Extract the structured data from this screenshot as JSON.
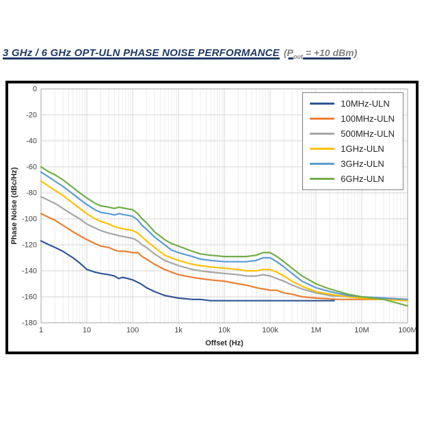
{
  "header": {
    "title_main": "3 GHz / 6 GHz OPT-ULN PHASE NOISE PERFORMANCE",
    "title_paren_pre": "(P",
    "title_sub": "out",
    "title_paren_post": " = +10 dBm)"
  },
  "chart_data": {
    "type": "line",
    "title": "3 GHz / 6 GHz OPT-ULN Phase Noise Performance (Pout = +10 dBm)",
    "xlabel": "Offset (Hz)",
    "ylabel": "Phase Noise (dBc/Hz)",
    "x_scale": "log",
    "xlim": [
      1,
      100000000
    ],
    "ylim": [
      -180,
      0
    ],
    "y_tick_step": 20,
    "x_tick_labels": [
      "1",
      "10",
      "100",
      "1k",
      "10k",
      "100k",
      "1M",
      "10M",
      "100M"
    ],
    "grid": true,
    "legend_position": "top-right",
    "series": [
      {
        "name": "10MHz-ULN",
        "color": "#2E5597",
        "points": [
          [
            1,
            -117
          ],
          [
            1.5,
            -120
          ],
          [
            2,
            -122
          ],
          [
            3,
            -125
          ],
          [
            5,
            -130
          ],
          [
            7,
            -134
          ],
          [
            10,
            -139
          ],
          [
            15,
            -141
          ],
          [
            20,
            -142
          ],
          [
            30,
            -143
          ],
          [
            40,
            -144
          ],
          [
            50,
            -146
          ],
          [
            60,
            -145
          ],
          [
            80,
            -146
          ],
          [
            100,
            -147
          ],
          [
            150,
            -150
          ],
          [
            200,
            -153
          ],
          [
            300,
            -156
          ],
          [
            500,
            -159
          ],
          [
            700,
            -160
          ],
          [
            1000,
            -161
          ],
          [
            2000,
            -162
          ],
          [
            3000,
            -162
          ],
          [
            5000,
            -163
          ],
          [
            10000,
            -163
          ],
          [
            30000,
            -163
          ],
          [
            100000,
            -163
          ],
          [
            300000,
            -163
          ],
          [
            1000000,
            -163
          ],
          [
            2500000,
            -163
          ]
        ]
      },
      {
        "name": "100MHz-ULN",
        "color": "#ED7D31",
        "points": [
          [
            1,
            -96
          ],
          [
            1.5,
            -99
          ],
          [
            2,
            -101
          ],
          [
            3,
            -105
          ],
          [
            5,
            -110
          ],
          [
            7,
            -113
          ],
          [
            10,
            -116
          ],
          [
            15,
            -119
          ],
          [
            20,
            -121
          ],
          [
            30,
            -122
          ],
          [
            40,
            -124
          ],
          [
            50,
            -125
          ],
          [
            70,
            -125
          ],
          [
            100,
            -126
          ],
          [
            130,
            -126
          ],
          [
            160,
            -129
          ],
          [
            200,
            -131
          ],
          [
            300,
            -135
          ],
          [
            500,
            -139
          ],
          [
            700,
            -141
          ],
          [
            1000,
            -143
          ],
          [
            2000,
            -145
          ],
          [
            3000,
            -146
          ],
          [
            5000,
            -147
          ],
          [
            10000,
            -148
          ],
          [
            20000,
            -150
          ],
          [
            30000,
            -151
          ],
          [
            50000,
            -153
          ],
          [
            70000,
            -154
          ],
          [
            100000,
            -155
          ],
          [
            140000,
            -155
          ],
          [
            200000,
            -157
          ],
          [
            300000,
            -158
          ],
          [
            500000,
            -160
          ],
          [
            1000000,
            -161
          ],
          [
            3000000,
            -162
          ],
          [
            10000000,
            -162
          ],
          [
            30000000,
            -162
          ],
          [
            100000000,
            -163
          ]
        ]
      },
      {
        "name": "500MHz-ULN",
        "color": "#A5A5A5",
        "points": [
          [
            1,
            -83
          ],
          [
            1.5,
            -86
          ],
          [
            2,
            -88
          ],
          [
            3,
            -92
          ],
          [
            5,
            -97
          ],
          [
            7,
            -100
          ],
          [
            10,
            -104
          ],
          [
            15,
            -107
          ],
          [
            20,
            -109
          ],
          [
            30,
            -111
          ],
          [
            40,
            -112
          ],
          [
            50,
            -113
          ],
          [
            70,
            -114
          ],
          [
            100,
            -115
          ],
          [
            130,
            -117
          ],
          [
            160,
            -120
          ],
          [
            200,
            -122
          ],
          [
            300,
            -127
          ],
          [
            500,
            -132
          ],
          [
            700,
            -134
          ],
          [
            1000,
            -136
          ],
          [
            2000,
            -139
          ],
          [
            3000,
            -140
          ],
          [
            5000,
            -141
          ],
          [
            10000,
            -142
          ],
          [
            20000,
            -143
          ],
          [
            30000,
            -144
          ],
          [
            50000,
            -144
          ],
          [
            70000,
            -143
          ],
          [
            100000,
            -144
          ],
          [
            140000,
            -146
          ],
          [
            200000,
            -148
          ],
          [
            300000,
            -151
          ],
          [
            500000,
            -154
          ],
          [
            1000000,
            -157
          ],
          [
            2000000,
            -159
          ],
          [
            5000000,
            -160
          ],
          [
            10000000,
            -161
          ],
          [
            30000000,
            -161
          ],
          [
            100000000,
            -162
          ]
        ]
      },
      {
        "name": "1GHz-ULN",
        "color": "#FFC000",
        "points": [
          [
            1,
            -71
          ],
          [
            1.5,
            -75
          ],
          [
            2,
            -78
          ],
          [
            3,
            -82
          ],
          [
            5,
            -88
          ],
          [
            7,
            -92
          ],
          [
            10,
            -96
          ],
          [
            15,
            -100
          ],
          [
            20,
            -102
          ],
          [
            30,
            -104
          ],
          [
            40,
            -106
          ],
          [
            50,
            -107
          ],
          [
            70,
            -108
          ],
          [
            100,
            -109
          ],
          [
            130,
            -111
          ],
          [
            160,
            -114
          ],
          [
            200,
            -117
          ],
          [
            300,
            -122
          ],
          [
            500,
            -128
          ],
          [
            700,
            -130
          ],
          [
            1000,
            -132
          ],
          [
            2000,
            -135
          ],
          [
            3000,
            -136
          ],
          [
            5000,
            -137
          ],
          [
            10000,
            -138
          ],
          [
            20000,
            -139
          ],
          [
            30000,
            -140
          ],
          [
            50000,
            -140
          ],
          [
            70000,
            -139
          ],
          [
            100000,
            -139
          ],
          [
            140000,
            -141
          ],
          [
            200000,
            -144
          ],
          [
            300000,
            -148
          ],
          [
            500000,
            -152
          ],
          [
            1000000,
            -156
          ],
          [
            2000000,
            -158
          ],
          [
            5000000,
            -160
          ],
          [
            10000000,
            -161
          ],
          [
            30000000,
            -162
          ],
          [
            100000000,
            -163
          ]
        ]
      },
      {
        "name": "3GHz-ULN",
        "color": "#5B9BD5",
        "points": [
          [
            1,
            -64
          ],
          [
            1.5,
            -68
          ],
          [
            2,
            -71
          ],
          [
            3,
            -75
          ],
          [
            5,
            -81
          ],
          [
            7,
            -85
          ],
          [
            10,
            -89
          ],
          [
            15,
            -93
          ],
          [
            20,
            -95
          ],
          [
            30,
            -96
          ],
          [
            40,
            -97
          ],
          [
            50,
            -96
          ],
          [
            70,
            -97
          ],
          [
            100,
            -98
          ],
          [
            130,
            -101
          ],
          [
            160,
            -105
          ],
          [
            200,
            -108
          ],
          [
            300,
            -114
          ],
          [
            500,
            -120
          ],
          [
            700,
            -124
          ],
          [
            1000,
            -126
          ],
          [
            2000,
            -129
          ],
          [
            3000,
            -131
          ],
          [
            5000,
            -132
          ],
          [
            10000,
            -133
          ],
          [
            20000,
            -133
          ],
          [
            30000,
            -133
          ],
          [
            50000,
            -132
          ],
          [
            70000,
            -130
          ],
          [
            100000,
            -130
          ],
          [
            140000,
            -133
          ],
          [
            200000,
            -137
          ],
          [
            300000,
            -142
          ],
          [
            500000,
            -148
          ],
          [
            1000000,
            -153
          ],
          [
            2000000,
            -156
          ],
          [
            5000000,
            -159
          ],
          [
            10000000,
            -160
          ],
          [
            30000000,
            -161
          ],
          [
            100000000,
            -162
          ]
        ]
      },
      {
        "name": "6GHz-ULN",
        "color": "#70AD47",
        "points": [
          [
            1,
            -60
          ],
          [
            1.5,
            -64
          ],
          [
            2,
            -66
          ],
          [
            3,
            -70
          ],
          [
            5,
            -76
          ],
          [
            7,
            -80
          ],
          [
            10,
            -84
          ],
          [
            15,
            -88
          ],
          [
            20,
            -90
          ],
          [
            30,
            -91
          ],
          [
            40,
            -92
          ],
          [
            50,
            -91
          ],
          [
            70,
            -92
          ],
          [
            100,
            -93
          ],
          [
            130,
            -96
          ],
          [
            160,
            -100
          ],
          [
            200,
            -103
          ],
          [
            300,
            -110
          ],
          [
            500,
            -116
          ],
          [
            700,
            -119
          ],
          [
            1000,
            -121
          ],
          [
            2000,
            -125
          ],
          [
            3000,
            -127
          ],
          [
            5000,
            -128
          ],
          [
            10000,
            -129
          ],
          [
            20000,
            -129
          ],
          [
            30000,
            -129
          ],
          [
            50000,
            -128
          ],
          [
            70000,
            -126
          ],
          [
            100000,
            -126
          ],
          [
            140000,
            -129
          ],
          [
            200000,
            -133
          ],
          [
            300000,
            -138
          ],
          [
            500000,
            -144
          ],
          [
            1000000,
            -150
          ],
          [
            2000000,
            -154
          ],
          [
            5000000,
            -158
          ],
          [
            10000000,
            -160
          ],
          [
            30000000,
            -162
          ],
          [
            100000000,
            -167
          ]
        ]
      }
    ]
  }
}
